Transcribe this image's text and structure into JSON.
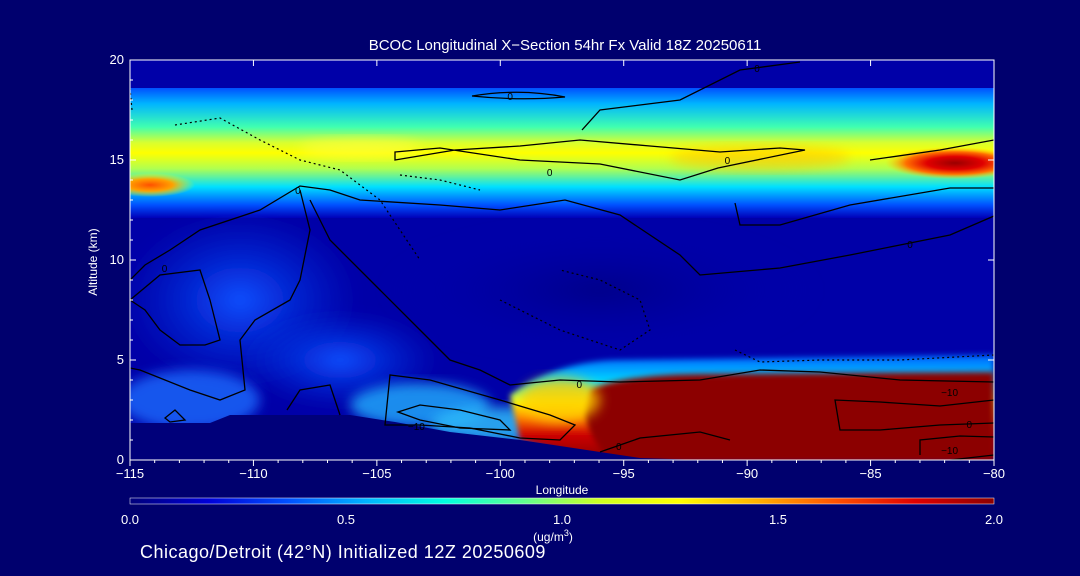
{
  "chart_data": {
    "type": "heatmap",
    "title": "BCOC Longitudinal X−Section 54hr  Fx Valid 18Z 20250611",
    "xlabel": "Longitude",
    "ylabel": "Altitude (km)",
    "xlim": [
      -115,
      -80
    ],
    "ylim": [
      0,
      20
    ],
    "x_ticks": [
      -115,
      -110,
      -105,
      -100,
      -95,
      -90,
      -85,
      -80
    ],
    "x_tick_labels": [
      "−115",
      "−110",
      "−105",
      "−100",
      "−95",
      "−90",
      "−85",
      "−80"
    ],
    "y_ticks": [
      0,
      5,
      10,
      15,
      20
    ],
    "y_tick_labels": [
      "0",
      "5",
      "10",
      "15",
      "20"
    ],
    "colorbar": {
      "ticks": [
        0.0,
        0.5,
        1.0,
        1.5,
        2.0
      ],
      "tick_labels": [
        "0.0",
        "0.5",
        "1.0",
        "1.5",
        "2.0"
      ],
      "unit": "(ug/m",
      "unit_superscript": "3",
      "unit_close": ")",
      "range": [
        0.0,
        2.0
      ],
      "colors": [
        "#00007a",
        "#0000d8",
        "#0050ff",
        "#00b4ff",
        "#00ffe0",
        "#60ff90",
        "#d0ff20",
        "#ffff00",
        "#ffb000",
        "#ff5000",
        "#e00000",
        "#8c0000"
      ]
    },
    "concentration_features": [
      {
        "name": "upper-band",
        "lon_range": [
          -115,
          -80
        ],
        "alt_range": [
          12.5,
          18.0
        ],
        "peak_alt": 15,
        "value": 1.0
      },
      {
        "name": "tropopause-max-east",
        "lon_center": -81.5,
        "alt_center": 14.8,
        "value": 1.9
      },
      {
        "name": "tropopause-max-west",
        "lon_center": -114.5,
        "alt_center": 13.7,
        "value": 1.6
      },
      {
        "name": "boundary-layer-east",
        "lon_range": [
          -97,
          -80
        ],
        "alt_range": [
          0.5,
          4.2
        ],
        "value": 2.0
      },
      {
        "name": "mid-trop-west",
        "lon_range": [
          -115,
          -99
        ],
        "alt_range": [
          1.5,
          11
        ],
        "value": 0.4
      }
    ],
    "contour_labels": [
      {
        "text": "0",
        "lon": -89.6,
        "alt": 19.6
      },
      {
        "text": "0",
        "lon": -99.6,
        "alt": 18.2
      },
      {
        "text": "0",
        "lon": -98.0,
        "alt": 14.4
      },
      {
        "text": "0",
        "lon": -90.8,
        "alt": 15.0
      },
      {
        "text": "0",
        "lon": -108.2,
        "alt": 13.5
      },
      {
        "text": "0",
        "lon": -83.4,
        "alt": 10.8
      },
      {
        "text": "0",
        "lon": -113.6,
        "alt": 9.6
      },
      {
        "text": "0",
        "lon": -96.8,
        "alt": 3.8
      },
      {
        "text": "−10",
        "lon": -81.8,
        "alt": 3.4
      },
      {
        "text": "0",
        "lon": -81.0,
        "alt": 1.8
      },
      {
        "text": "−10",
        "lon": -103.4,
        "alt": 1.7
      },
      {
        "text": "−10",
        "lon": -81.8,
        "alt": 0.5
      },
      {
        "text": "0",
        "lon": -95.2,
        "alt": 0.7
      }
    ]
  },
  "footer": {
    "text": "Chicago/Detroit (42°N) Initialized 12Z 20250609"
  }
}
